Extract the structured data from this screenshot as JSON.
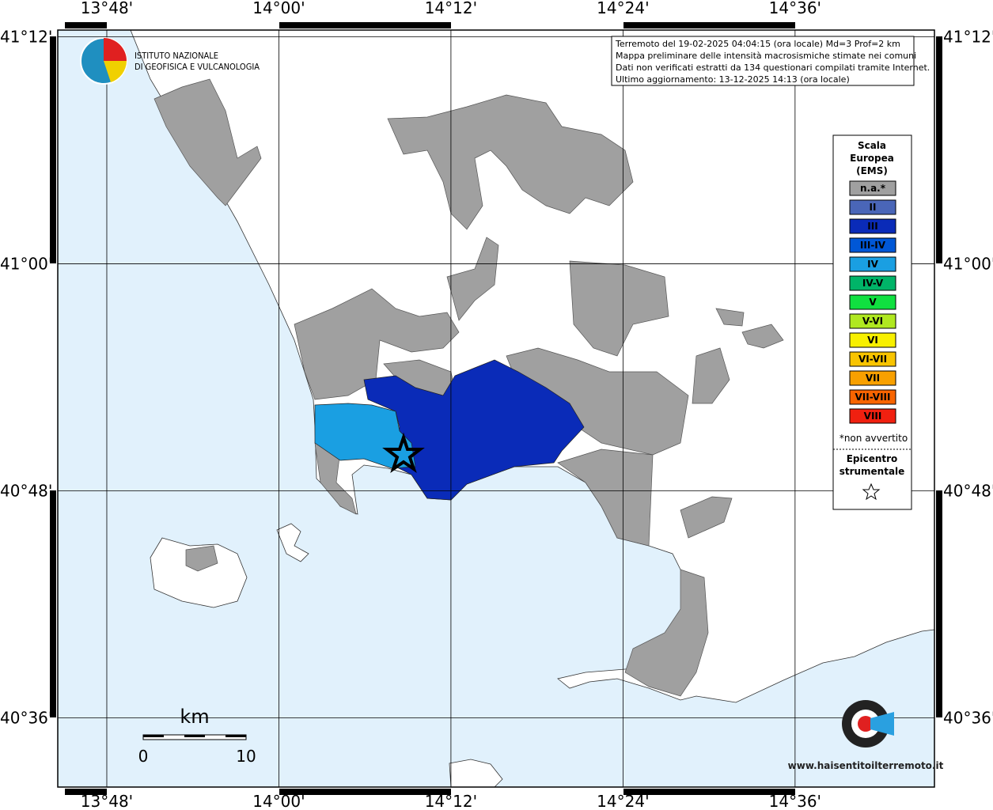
{
  "map": {
    "lonlim": [
      13.743,
      14.762
    ],
    "latlim": [
      40.539,
      41.206
    ],
    "lon_ticks": [
      {
        "value": 13.8,
        "label": "13°48'"
      },
      {
        "value": 14.0,
        "label": "14°00'"
      },
      {
        "value": 14.2,
        "label": "14°12'"
      },
      {
        "value": 14.4,
        "label": "14°24'"
      },
      {
        "value": 14.6,
        "label": "14°36'"
      }
    ],
    "lat_ticks": [
      {
        "value": 41.2,
        "label": "41°12'"
      },
      {
        "value": 41.0,
        "label": "41°00'"
      },
      {
        "value": 40.8,
        "label": "40°48'"
      },
      {
        "value": 40.6,
        "label": "40°36'"
      }
    ],
    "grid": true
  },
  "logo": {
    "line1": "ISTITUTO NAZIONALE",
    "line2": "DI GEOFISICA E VULCANOLOGIA"
  },
  "info_box": {
    "lines": [
      "Terremoto del 19-02-2025 04:04:15 (ora locale) Md=3 Prof=2 km",
      "Mappa preliminare delle intensità macrosismiche stimate nei comuni",
      "Dati non verificati estratti da 134 questionari compilati tramite Internet.",
      "Ultimo aggiornamento: 13-12-2025 14:13 (ora locale)"
    ]
  },
  "legend": {
    "title": [
      "Scala",
      "Europea",
      "(EMS)"
    ],
    "items": [
      {
        "label": "n.a.*",
        "color": "#a0a0a0"
      },
      {
        "label": "II",
        "color": "#4a66b8"
      },
      {
        "label": "III",
        "color": "#0a2bb8"
      },
      {
        "label": "III-IV",
        "color": "#0057d6"
      },
      {
        "label": "IV",
        "color": "#1a9fe2"
      },
      {
        "label": "IV-V",
        "color": "#00b468"
      },
      {
        "label": "V",
        "color": "#10e040"
      },
      {
        "label": "V-VI",
        "color": "#b0e820"
      },
      {
        "label": "VI",
        "color": "#f8f000"
      },
      {
        "label": "VI-VII",
        "color": "#f8c400"
      },
      {
        "label": "VII",
        "color": "#f8a000"
      },
      {
        "label": "VII-VIII",
        "color": "#f86400"
      },
      {
        "label": "VIII",
        "color": "#f02010"
      }
    ],
    "note": "*non avvertito",
    "epicenter_title": [
      "Epicentro",
      "strumentale"
    ]
  },
  "scale_bar": {
    "unit": "km",
    "labels": [
      0,
      10
    ]
  },
  "watermark": "www.haisentitoilterremoto.it"
}
